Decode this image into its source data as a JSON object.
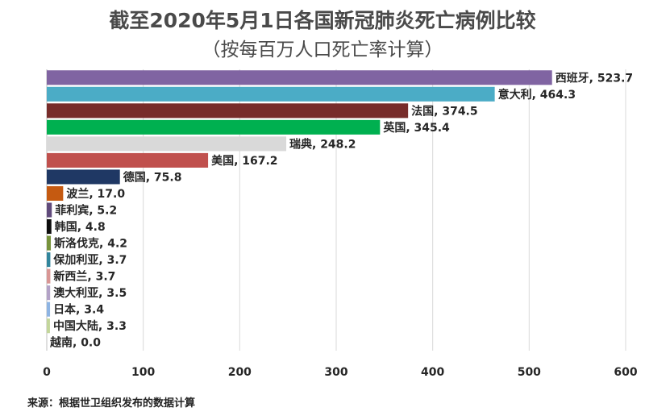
{
  "chart_data": {
    "type": "bar",
    "orientation": "horizontal",
    "title": "截至2020年5月1日各国新冠肺炎死亡病例比较",
    "subtitle": "（按每百万人口死亡率计算）",
    "categories": [
      "西班牙",
      "意大利",
      "法国",
      "英国",
      "瑞典",
      "美国",
      "德国",
      "波兰",
      "菲利宾",
      "韩国",
      "斯洛伐克",
      "保加利亚",
      "新西兰",
      "澳大利亚",
      "日本",
      "中国大陆",
      "越南"
    ],
    "values": [
      523.7,
      464.3,
      374.5,
      345.4,
      248.2,
      167.2,
      75.8,
      17.0,
      5.2,
      4.8,
      4.2,
      3.7,
      3.7,
      3.5,
      3.4,
      3.3,
      0.0
    ],
    "data_labels": [
      "西班牙, 523.7",
      "意大利, 464.3",
      "法国, 374.5",
      "英国, 345.4",
      "瑞典, 248.2",
      "美国, 167.2",
      "德国, 75.8",
      "波兰, 17.0",
      "菲利宾, 5.2",
      "韩国, 4.8",
      "斯洛伐克, 4.2",
      "保加利亚, 3.7",
      "新西兰, 3.7",
      "澳大利亚, 3.5",
      "日本, 3.4",
      "中国大陆, 3.3",
      "越南, 0.0"
    ],
    "colors": [
      "#8064a2",
      "#4bacc6",
      "#772c2a",
      "#00b050",
      "#d9d9d9",
      "#c0504d",
      "#1f3864",
      "#c55a11",
      "#604a7b",
      "#0d0d0d",
      "#77933c",
      "#31859c",
      "#d99694",
      "#b3a2c7",
      "#8eb4e3",
      "#c3d69b",
      "#ffffff"
    ],
    "xlim": [
      0,
      600
    ],
    "xticks": [
      0,
      100,
      200,
      300,
      400,
      500,
      600
    ],
    "xticklabels": [
      "0",
      "100",
      "200",
      "300",
      "400",
      "500",
      "600"
    ],
    "grid": true,
    "legend": "none"
  },
  "source": "来源：根据世卫组织发布的数据计算"
}
